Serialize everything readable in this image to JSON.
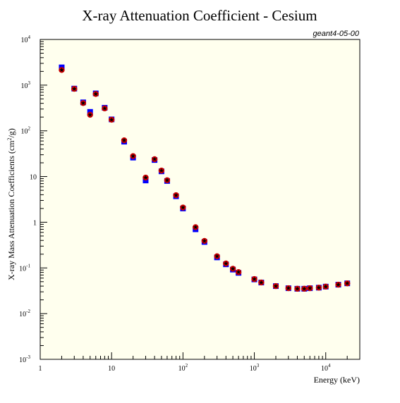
{
  "chart_data": {
    "type": "scatter",
    "title": "X-ray Attenuation Coefficient - Cesium",
    "annotation": "geant4-05-00",
    "xlabel": "Energy (keV)",
    "ylabel_parts": {
      "before": "X-ray Mass Attenuation Coefficients (cm",
      "sup": "2",
      "after": "/g)"
    },
    "xscale": "log",
    "yscale": "log",
    "xlim": [
      1,
      30000
    ],
    "ylim": [
      0.001,
      10000
    ],
    "grid": false,
    "x_ticks": [
      {
        "value": 1,
        "base": "1",
        "exp": ""
      },
      {
        "value": 10,
        "base": "10",
        "exp": ""
      },
      {
        "value": 100,
        "base": "10",
        "exp": "2"
      },
      {
        "value": 1000,
        "base": "10",
        "exp": "3"
      },
      {
        "value": 10000,
        "base": "10",
        "exp": "4"
      }
    ],
    "y_ticks": [
      {
        "value": 0.001,
        "base": "10",
        "exp": "-3"
      },
      {
        "value": 0.01,
        "base": "10",
        "exp": "-2"
      },
      {
        "value": 0.1,
        "base": "10",
        "exp": "-1"
      },
      {
        "value": 1,
        "base": "1",
        "exp": ""
      },
      {
        "value": 10,
        "base": "10",
        "exp": ""
      },
      {
        "value": 100,
        "base": "10",
        "exp": "2"
      },
      {
        "value": 1000,
        "base": "10",
        "exp": "3"
      },
      {
        "value": 10000,
        "base": "10",
        "exp": "4"
      }
    ],
    "colors": {
      "background": "#ffffee",
      "reference_marker": "#0000ff",
      "circle_marker": "#cc0000",
      "star_marker": "#000000",
      "annotation": "#cc0000"
    },
    "series": [
      {
        "marker": "square",
        "color": "#0000ff",
        "x": [
          2,
          3,
          4,
          5,
          6,
          8,
          10,
          15,
          20,
          30,
          40,
          50,
          60,
          80,
          100,
          150,
          200,
          300,
          400,
          500,
          600,
          1000,
          1250,
          2000,
          3000,
          4000,
          5000,
          6000,
          8000,
          10000,
          15000,
          20000
        ],
        "y": [
          2450,
          840,
          420,
          260,
          660,
          320,
          178,
          58,
          26,
          8.2,
          23,
          13,
          8,
          3.7,
          2.0,
          0.7,
          0.37,
          0.17,
          0.12,
          0.092,
          0.078,
          0.056,
          0.048,
          0.04,
          0.036,
          0.035,
          0.035,
          0.036,
          0.037,
          0.039,
          0.043,
          0.046
        ]
      },
      {
        "marker": "circle",
        "color": "#cc0000",
        "x": [
          2,
          3,
          4,
          5,
          6,
          8,
          10,
          15,
          20,
          30,
          40,
          50,
          60,
          80,
          100,
          150,
          200,
          300,
          400,
          500,
          600,
          1000,
          1250,
          2000,
          3000,
          4000,
          5000,
          6000,
          8000,
          10000,
          15000,
          20000
        ],
        "y": [
          2150,
          830,
          405,
          225,
          640,
          310,
          175,
          62,
          28,
          9.5,
          24,
          13.5,
          8.3,
          3.9,
          2.1,
          0.78,
          0.39,
          0.18,
          0.125,
          0.096,
          0.081,
          0.057,
          0.048,
          0.04,
          0.036,
          0.035,
          0.035,
          0.036,
          0.037,
          0.039,
          0.043,
          0.046
        ]
      },
      {
        "marker": "star",
        "color": "#000000",
        "x": [
          2,
          3,
          4,
          5,
          6,
          8,
          10,
          15,
          20,
          30,
          40,
          50,
          60,
          80,
          100,
          150,
          200,
          300,
          400,
          500,
          600,
          1000,
          1250,
          2000,
          3000,
          4000,
          5000,
          6000,
          8000,
          10000,
          15000,
          20000
        ],
        "y": [
          2150,
          830,
          405,
          225,
          640,
          310,
          175,
          62,
          28,
          9.5,
          24,
          13.5,
          8.3,
          3.9,
          2.1,
          0.78,
          0.39,
          0.18,
          0.125,
          0.096,
          0.081,
          0.057,
          0.048,
          0.04,
          0.036,
          0.035,
          0.035,
          0.036,
          0.037,
          0.039,
          0.043,
          0.046
        ]
      }
    ]
  }
}
